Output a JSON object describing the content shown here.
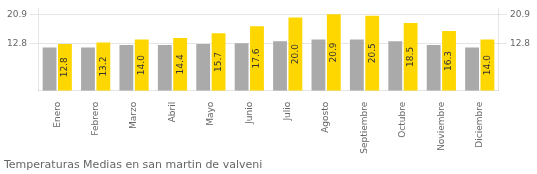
{
  "chart_data": {
    "type": "bar",
    "title": "Temperaturas Medias en san martin de valveni",
    "categories": [
      "Enero",
      "Febrero",
      "Marzo",
      "Abril",
      "Mayo",
      "Junio",
      "Julio",
      "Agosto",
      "Septiembre",
      "Octubre",
      "Noviembre",
      "Diciembre"
    ],
    "series": [
      {
        "color": "#AAAAAA",
        "values": [
          11.8,
          11.8,
          12.5,
          12.5,
          12.8,
          13.0,
          13.5,
          14.0,
          14.0,
          13.5,
          12.5,
          11.8
        ]
      },
      {
        "color": "#FFD700",
        "values": [
          12.8,
          13.2,
          14.0,
          14.4,
          15.7,
          17.6,
          20.0,
          20.9,
          20.5,
          18.5,
          16.3,
          14.0
        ],
        "data_labels": true,
        "value_labels": [
          "12.8",
          "13.2",
          "14.0",
          "14.4",
          "15.7",
          "17.6",
          "20.0",
          "20.9",
          "20.5",
          "18.5",
          "16.3",
          "14.0"
        ]
      }
    ],
    "ylim": [
      0,
      22.5
    ],
    "yticks": [
      12.8,
      20.9
    ],
    "y2lim": [
      0,
      22.5
    ],
    "y2ticks": [
      12.8,
      20.9
    ],
    "grid": true
  }
}
